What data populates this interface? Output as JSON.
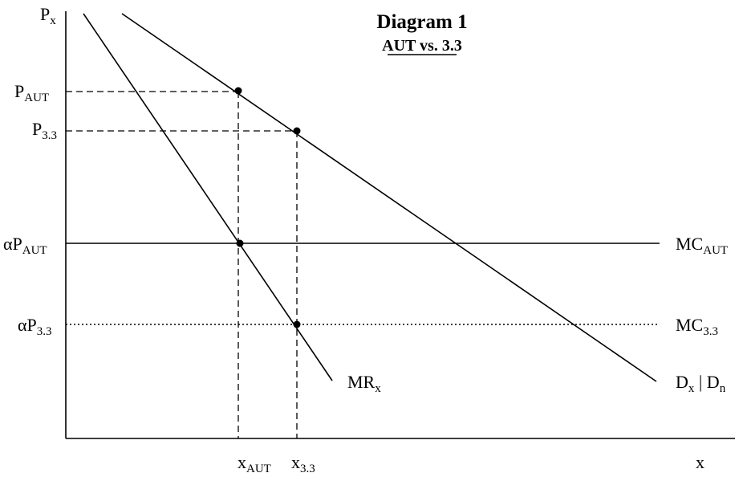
{
  "title": "Diagram 1",
  "subtitle": "AUT vs. 3.3",
  "axes": {
    "y": {
      "main": "P",
      "sub": "x"
    },
    "x": {
      "main": "x"
    }
  },
  "y_labels": {
    "p_aut": {
      "main": "P",
      "sub": "AUT"
    },
    "p_33": {
      "main": "P",
      "sub": "3.3"
    },
    "alpha_p_aut": {
      "main": "αP",
      "sub": "AUT"
    },
    "alpha_p_33": {
      "main": "αP",
      "sub": "3.3"
    }
  },
  "x_labels": {
    "x_aut": {
      "main": "x",
      "sub": "AUT"
    },
    "x_33": {
      "main": "x",
      "sub": "3.3"
    }
  },
  "curve_labels": {
    "mc_aut": {
      "main": "MC",
      "sub": "AUT"
    },
    "mc_33": {
      "main": "MC",
      "sub": "3.3"
    },
    "mr": {
      "main": "MR",
      "sub": "x"
    },
    "demand": {
      "main1": "D",
      "sub1": "x",
      "sep": " | ",
      "main2": "D",
      "sub2": "n"
    }
  }
}
